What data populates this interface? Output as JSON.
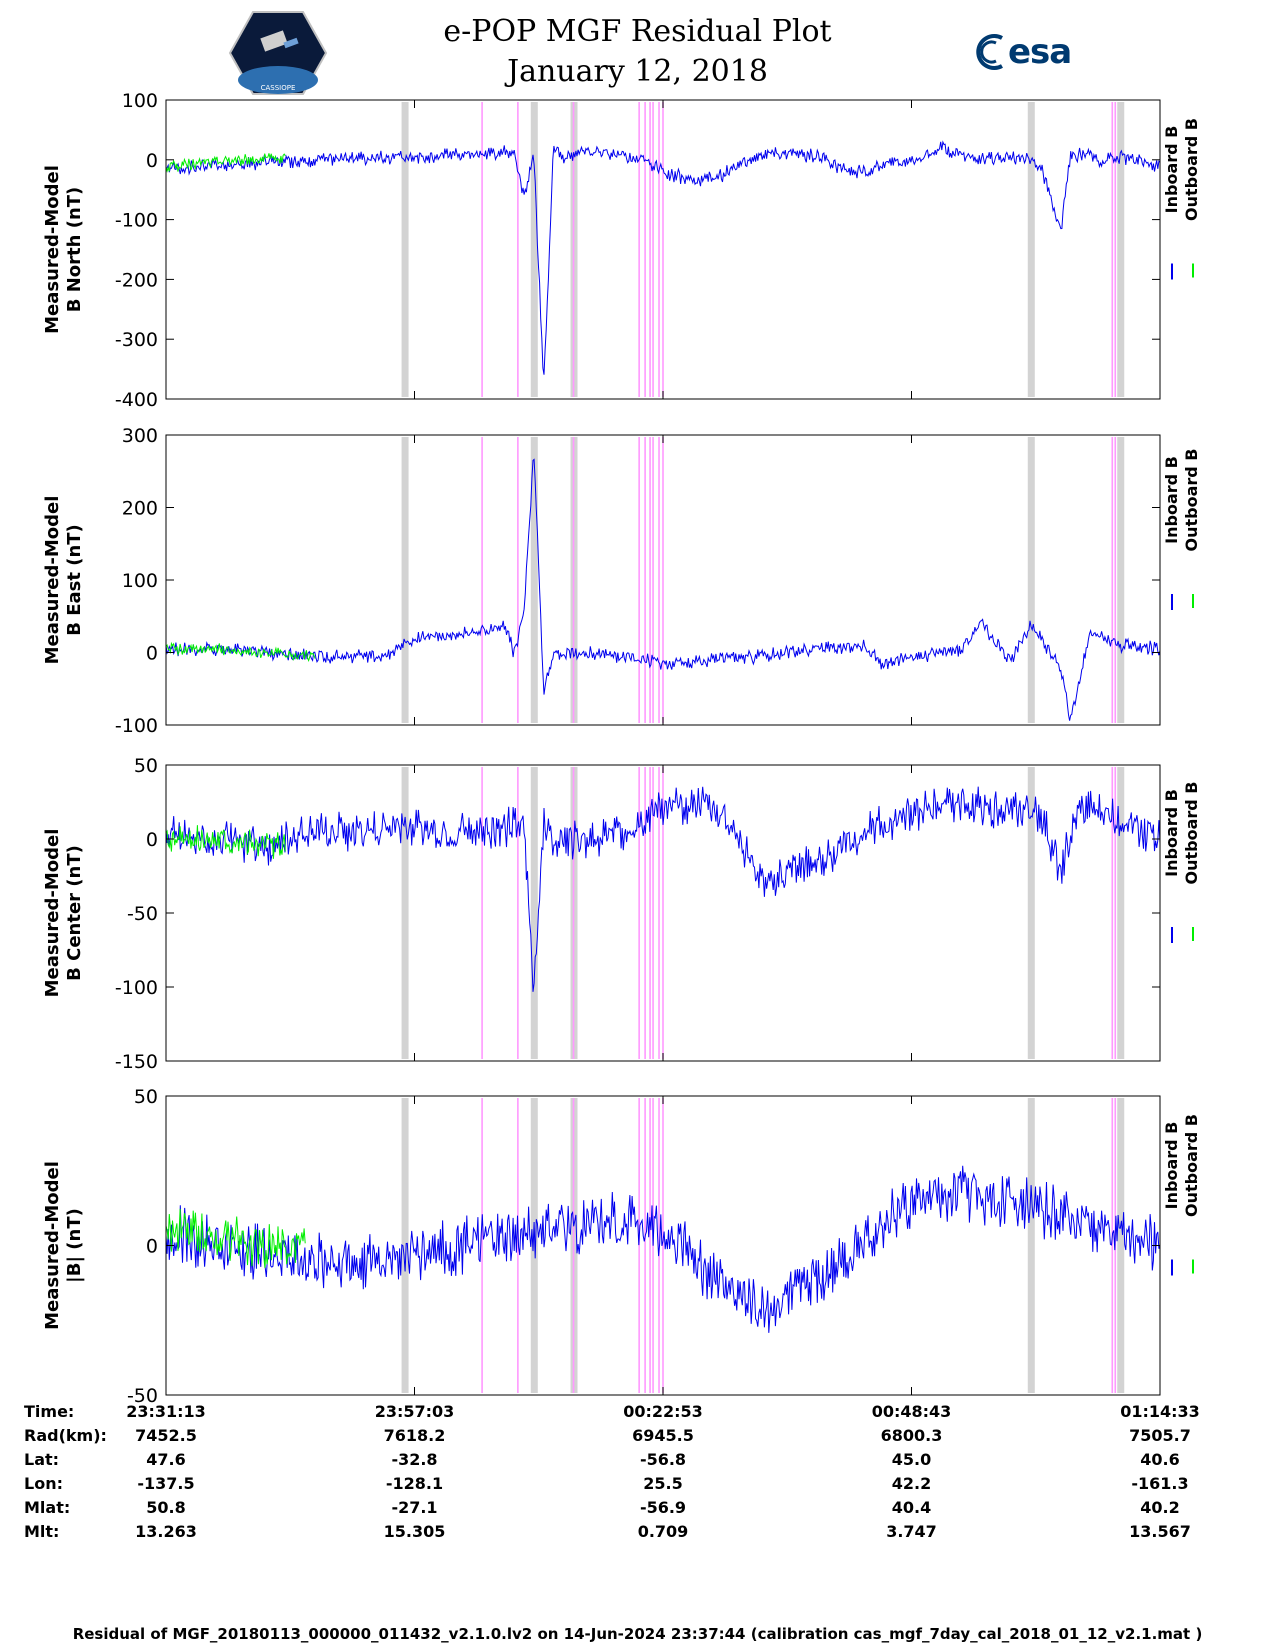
{
  "header": {
    "title_line1": "e-POP MGF Residual Plot",
    "title_line2": "January 12, 2018",
    "logo_left": "CASSIOPE",
    "logo_right": "esa"
  },
  "colors": {
    "inboard": "#0000ee",
    "outboard": "#00ee00",
    "gray_band": "#d3d3d3",
    "magenta_line": "#ff99ff"
  },
  "chart_data": [
    {
      "type": "line",
      "title": "",
      "ylabel_line1": "Measured-Model",
      "ylabel_line2": "B North (nT)",
      "ylim": [
        -400,
        100
      ],
      "yticks": [
        100,
        0,
        -100,
        -200,
        -300,
        -400
      ],
      "legend": [
        "Inboard B",
        "Outboard B"
      ],
      "series": [
        {
          "name": "Inboard B",
          "color": "#0000ee",
          "x": [
            0,
            0.05,
            0.1,
            0.15,
            0.2,
            0.24,
            0.26,
            0.28,
            0.3,
            0.33,
            0.35,
            0.36,
            0.37,
            0.38,
            0.39,
            0.4,
            0.42,
            0.45,
            0.48,
            0.5,
            0.53,
            0.56,
            0.58,
            0.6,
            0.63,
            0.66,
            0.68,
            0.7,
            0.72,
            0.74,
            0.76,
            0.78,
            0.82,
            0.86,
            0.88,
            0.9,
            0.91,
            0.92,
            0.94,
            0.96,
            1.0
          ],
          "values": [
            -15,
            -10,
            -5,
            0,
            2,
            5,
            5,
            8,
            8,
            10,
            15,
            -60,
            10,
            -380,
            25,
            0,
            15,
            10,
            0,
            -20,
            -35,
            -25,
            -5,
            10,
            10,
            5,
            -15,
            -20,
            -10,
            -5,
            5,
            20,
            0,
            5,
            -10,
            -120,
            5,
            10,
            0,
            5,
            -10
          ],
          "noise": 12
        },
        {
          "name": "Outboard B",
          "color": "#00ee00",
          "x": [
            0,
            0.04,
            0.08,
            0.12
          ],
          "values": [
            -12,
            -5,
            0,
            2
          ],
          "noise": 10
        }
      ]
    },
    {
      "type": "line",
      "title": "",
      "ylabel_line1": "Measured-Model",
      "ylabel_line2": "B East (nT)",
      "ylim": [
        -100,
        300
      ],
      "yticks": [
        300,
        200,
        100,
        0,
        -100
      ],
      "legend": [
        "Inboard B",
        "Outboard B"
      ],
      "series": [
        {
          "name": "Inboard B",
          "color": "#0000ee",
          "x": [
            0,
            0.05,
            0.1,
            0.15,
            0.2,
            0.23,
            0.24,
            0.26,
            0.29,
            0.32,
            0.34,
            0.35,
            0.36,
            0.37,
            0.38,
            0.39,
            0.42,
            0.46,
            0.5,
            0.55,
            0.6,
            0.65,
            0.7,
            0.72,
            0.76,
            0.8,
            0.82,
            0.85,
            0.87,
            0.9,
            0.91,
            0.93,
            0.96,
            1.0
          ],
          "values": [
            5,
            5,
            0,
            -5,
            -5,
            0,
            15,
            20,
            25,
            30,
            40,
            0,
            50,
            280,
            -50,
            0,
            0,
            -5,
            -15,
            -10,
            -5,
            5,
            10,
            -15,
            -5,
            5,
            40,
            -10,
            40,
            -20,
            -95,
            30,
            10,
            5
          ],
          "noise": 10
        },
        {
          "name": "Outboard B",
          "color": "#00ee00",
          "x": [
            0,
            0.05,
            0.1,
            0.15
          ],
          "values": [
            5,
            5,
            0,
            -5
          ],
          "noise": 8
        }
      ]
    },
    {
      "type": "line",
      "title": "",
      "ylabel_line1": "Measured-Model",
      "ylabel_line2": "B Center (nT)",
      "ylim": [
        -150,
        50
      ],
      "yticks": [
        50,
        0,
        -50,
        -100,
        -150
      ],
      "legend": [
        "Inboard B",
        "Outboard B"
      ],
      "series": [
        {
          "name": "Inboard B",
          "color": "#0000ee",
          "x": [
            0,
            0.05,
            0.1,
            0.15,
            0.2,
            0.24,
            0.28,
            0.32,
            0.36,
            0.37,
            0.38,
            0.39,
            0.42,
            0.46,
            0.5,
            0.54,
            0.57,
            0.6,
            0.64,
            0.68,
            0.72,
            0.76,
            0.8,
            0.84,
            0.88,
            0.9,
            0.92,
            0.96,
            1.0
          ],
          "values": [
            5,
            0,
            -5,
            5,
            5,
            10,
            5,
            5,
            10,
            -100,
            10,
            0,
            0,
            5,
            20,
            25,
            10,
            -30,
            -20,
            -5,
            10,
            20,
            25,
            20,
            15,
            -20,
            20,
            15,
            0
          ],
          "noise": 14
        },
        {
          "name": "Outboard B",
          "color": "#00ee00",
          "x": [
            0,
            0.05,
            0.1,
            0.12
          ],
          "values": [
            0,
            0,
            -5,
            -5
          ],
          "noise": 10
        }
      ]
    },
    {
      "type": "line",
      "title": "",
      "ylabel_line1": "Measured-Model",
      "ylabel_line2": "|B| (nT)",
      "ylim": [
        -50,
        50
      ],
      "yticks": [
        50,
        0,
        -50
      ],
      "legend": [
        "Inboard B",
        "Outboard B"
      ],
      "series": [
        {
          "name": "Inboard B",
          "color": "#0000ee",
          "x": [
            0,
            0.05,
            0.1,
            0.15,
            0.2,
            0.25,
            0.3,
            0.35,
            0.4,
            0.45,
            0.5,
            0.55,
            0.6,
            0.65,
            0.7,
            0.75,
            0.8,
            0.85,
            0.9,
            0.95,
            1.0
          ],
          "values": [
            5,
            0,
            -3,
            -5,
            -5,
            -3,
            0,
            3,
            5,
            8,
            5,
            -10,
            -22,
            -12,
            3,
            15,
            18,
            15,
            10,
            5,
            0
          ],
          "noise": 10
        },
        {
          "name": "Outboard B",
          "color": "#00ee00",
          "x": [
            0,
            0.05,
            0.1,
            0.14
          ],
          "values": [
            5,
            3,
            0,
            0
          ],
          "noise": 8
        }
      ]
    }
  ],
  "overlays": {
    "gray_bands": [
      0.24,
      0.37,
      0.41,
      0.87,
      0.96
    ],
    "magenta_lines": [
      0.318,
      0.354,
      0.41,
      0.476,
      0.482,
      0.487,
      0.49,
      0.496,
      0.5,
      0.952,
      0.955
    ]
  },
  "time_axis": {
    "labels": [
      "Time:",
      "Rad(km):",
      "Lat:",
      "Lon:",
      "Mlat:",
      "Mlt:"
    ],
    "columns": [
      [
        "23:31:13",
        "7452.5",
        "47.6",
        "-137.5",
        "50.8",
        "13.263"
      ],
      [
        "23:57:03",
        "7618.2",
        "-32.8",
        "-128.1",
        "-27.1",
        "15.305"
      ],
      [
        "00:22:53",
        "6945.5",
        "-56.8",
        "25.5",
        "-56.9",
        "0.709"
      ],
      [
        "00:48:43",
        "6800.3",
        "45.0",
        "42.2",
        "40.4",
        "3.747"
      ],
      [
        "01:14:33",
        "7505.7",
        "40.6",
        "-161.3",
        "40.2",
        "13.567"
      ]
    ]
  },
  "footer": "Residual of MGF_20180113_000000_011432_v2.1.0.lv2 on 14-Jun-2024 23:37:44 (calibration cas_mgf_7day_cal_2018_01_12_v2.1.mat )"
}
